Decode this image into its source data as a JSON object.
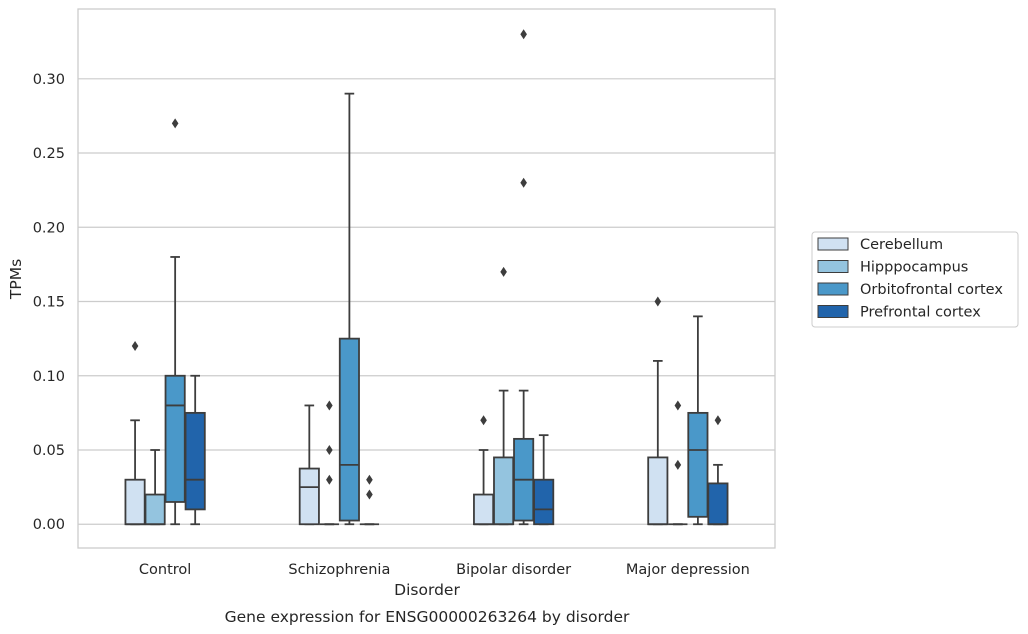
{
  "chart_data": {
    "type": "box",
    "title": "",
    "caption": "Gene expression for ENSG00000263264 by disorder",
    "xlabel": "Disorder",
    "ylabel": "TPMs",
    "ylim": [
      -0.016,
      0.347
    ],
    "yticks": [
      "0.00",
      "0.05",
      "0.10",
      "0.15",
      "0.20",
      "0.25",
      "0.30"
    ],
    "grid": "horizontal",
    "legend_position": "right",
    "categories": [
      "Control",
      "Schizophrenia",
      "Bipolar disorder",
      "Major depression"
    ],
    "series": [
      {
        "name": "Cerebellum",
        "color": "#d0e1f2",
        "boxes": [
          {
            "whisker_low": 0.0,
            "q1": 0.0,
            "median": 0.0,
            "q3": 0.03,
            "whisker_high": 0.07,
            "outliers": [
              0.12
            ]
          },
          {
            "whisker_low": 0.0,
            "q1": 0.0,
            "median": 0.025,
            "q3": 0.0375,
            "whisker_high": 0.08,
            "outliers": []
          },
          {
            "whisker_low": 0.0,
            "q1": 0.0,
            "median": 0.0,
            "q3": 0.02,
            "whisker_high": 0.05,
            "outliers": [
              0.07
            ]
          },
          {
            "whisker_low": 0.0,
            "q1": 0.0,
            "median": 0.0,
            "q3": 0.045,
            "whisker_high": 0.11,
            "outliers": [
              0.15
            ]
          }
        ]
      },
      {
        "name": "Hipppocampus",
        "color": "#94c4df",
        "boxes": [
          {
            "whisker_low": 0.0,
            "q1": 0.0,
            "median": 0.0,
            "q3": 0.02,
            "whisker_high": 0.05,
            "outliers": []
          },
          {
            "whisker_low": 0.0,
            "q1": 0.0,
            "median": 0.0,
            "q3": 0.0,
            "whisker_high": 0.0,
            "outliers": [
              0.03,
              0.05,
              0.08
            ]
          },
          {
            "whisker_low": 0.0,
            "q1": 0.0,
            "median": 0.0,
            "q3": 0.045,
            "whisker_high": 0.09,
            "outliers": [
              0.17
            ]
          },
          {
            "whisker_low": 0.0,
            "q1": 0.0,
            "median": 0.0,
            "q3": 0.0,
            "whisker_high": 0.0,
            "outliers": [
              0.04,
              0.08
            ]
          }
        ]
      },
      {
        "name": "Orbitofrontal cortex",
        "color": "#4a98c9",
        "boxes": [
          {
            "whisker_low": 0.0,
            "q1": 0.015,
            "median": 0.08,
            "q3": 0.1,
            "whisker_high": 0.18,
            "outliers": [
              0.27
            ]
          },
          {
            "whisker_low": 0.0,
            "q1": 0.0025,
            "median": 0.04,
            "q3": 0.125,
            "whisker_high": 0.29,
            "outliers": []
          },
          {
            "whisker_low": 0.0,
            "q1": 0.0025,
            "median": 0.03,
            "q3": 0.0575,
            "whisker_high": 0.09,
            "outliers": [
              0.23,
              0.33
            ]
          },
          {
            "whisker_low": 0.0,
            "q1": 0.005,
            "median": 0.05,
            "q3": 0.075,
            "whisker_high": 0.14,
            "outliers": []
          }
        ]
      },
      {
        "name": "Prefrontal cortex",
        "color": "#2164ab",
        "boxes": [
          {
            "whisker_low": 0.0,
            "q1": 0.01,
            "median": 0.03,
            "q3": 0.075,
            "whisker_high": 0.1,
            "outliers": []
          },
          {
            "whisker_low": 0.0,
            "q1": 0.0,
            "median": 0.0,
            "q3": 0.0,
            "whisker_high": 0.0,
            "outliers": [
              0.02,
              0.03
            ]
          },
          {
            "whisker_low": 0.0,
            "q1": 0.0,
            "median": 0.01,
            "q3": 0.03,
            "whisker_high": 0.06,
            "outliers": []
          },
          {
            "whisker_low": 0.0,
            "q1": 0.0,
            "median": 0.0,
            "q3": 0.0275,
            "whisker_high": 0.04,
            "outliers": [
              0.07
            ]
          }
        ]
      }
    ]
  }
}
